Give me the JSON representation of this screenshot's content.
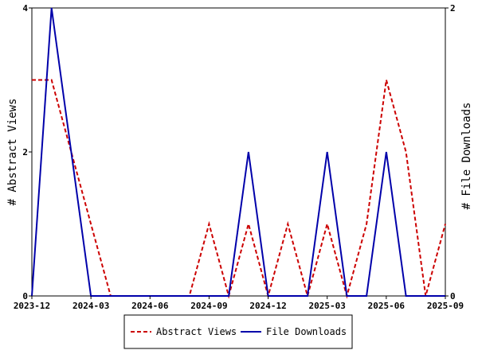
{
  "chart_data": {
    "type": "line",
    "x": [
      "2023-12",
      "2024-01",
      "2024-02",
      "2024-03",
      "2024-04",
      "2024-05",
      "2024-06",
      "2024-07",
      "2024-08",
      "2024-09",
      "2024-10",
      "2024-11",
      "2024-12",
      "2025-01",
      "2025-02",
      "2025-03",
      "2025-04",
      "2025-05",
      "2025-06",
      "2025-07",
      "2025-08",
      "2025-09"
    ],
    "xticks": [
      "2023-12",
      "2024-03",
      "2024-06",
      "2024-09",
      "2024-12",
      "2025-03",
      "2025-06",
      "2025-09"
    ],
    "ylabel": "# Abstract Views",
    "y2label": "# File Downloads",
    "ylim": [
      0,
      4
    ],
    "y2lim": [
      0,
      2
    ],
    "yticks": [
      "0",
      "2",
      "4"
    ],
    "y2ticks": [
      "0",
      "2"
    ],
    "series": [
      {
        "name": "Abstract Views",
        "axis": "left",
        "color": "#cc0000",
        "dash": true,
        "values": [
          3,
          3,
          2,
          1,
          0,
          0,
          0,
          0,
          0,
          1,
          0,
          1,
          0,
          1,
          0,
          1,
          0,
          1,
          3,
          2,
          0,
          1
        ]
      },
      {
        "name": "File Downloads",
        "axis": "right",
        "color": "#0000aa",
        "dash": false,
        "values": [
          0,
          2,
          1,
          0,
          0,
          0,
          0,
          0,
          0,
          0,
          0,
          1,
          0,
          0,
          0,
          1,
          0,
          0,
          1,
          0,
          0,
          0
        ]
      }
    ],
    "legend": "bottom",
    "grid": false
  }
}
